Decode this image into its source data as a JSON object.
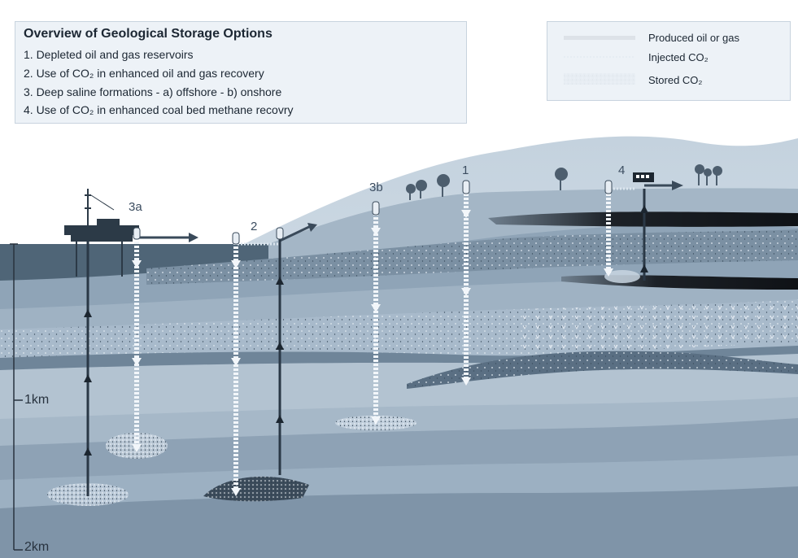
{
  "title": "Overview of Geological Storage Options",
  "options": [
    "1. Depleted oil and gas reservoirs",
    "2. Use of CO₂ in enhanced oil and gas recovery",
    "3. Deep saline formations - a) offshore - b) onshore",
    "4. Use of CO₂ in enhanced coal bed methane recovry"
  ],
  "legend": {
    "produced": "Produced oil or gas",
    "injected": "Injected CO₂",
    "stored": "Stored CO₂"
  },
  "site_labels": {
    "s3a": "3a",
    "s2": "2",
    "s3b": "3b",
    "s1": "1",
    "s4": "4"
  },
  "depth_labels": {
    "d1": "1km",
    "d2": "2km"
  },
  "colors": {
    "sky": "#ffffff",
    "sea": "#4f6577",
    "injected_well": "#f2f6fa",
    "produced_well": "#2a3846",
    "oil_layer": "#1e2328",
    "stored_co2": "#c9d6e2"
  }
}
